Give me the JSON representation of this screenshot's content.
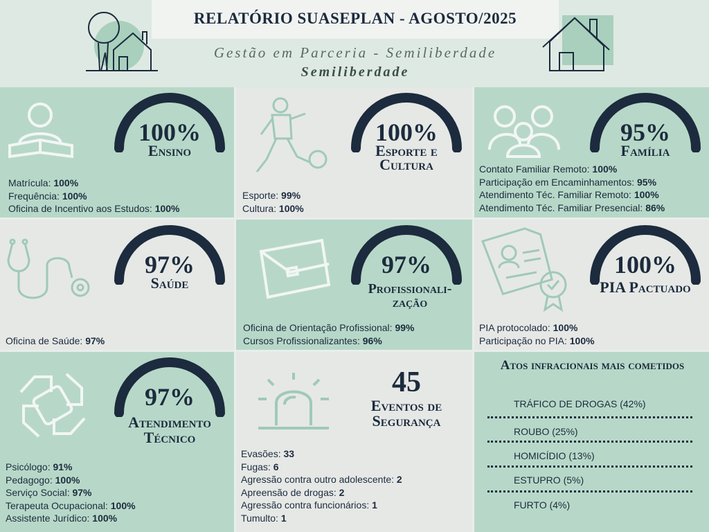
{
  "header": {
    "title": "RELATÓRIO SUASEPLAN - AGOSTO/2025",
    "subtitle": "Gestão em Parceria - Semiliberdade",
    "subtitle2": "Semiliberdade"
  },
  "colors": {
    "green": "#b7d8c8",
    "gray": "#e6e8e6",
    "navy": "#1c2b3d",
    "icon": "#7fb9a2"
  },
  "cards": [
    {
      "percent": "100%",
      "label": "Ensino",
      "icon": "reading-person-icon",
      "items": [
        {
          "label": "Matrícula: ",
          "value": "100%"
        },
        {
          "label": "Frequência: ",
          "value": "100%"
        },
        {
          "label": "Oficina de Incentivo aos Estudos: ",
          "value": "100%"
        }
      ]
    },
    {
      "percent": "100%",
      "label": "Esporte e Cultura",
      "icon": "soccer-player-icon",
      "items": [
        {
          "label": "Esporte: ",
          "value": "99%"
        },
        {
          "label": "Cultura: ",
          "value": "100%"
        }
      ]
    },
    {
      "percent": "95%",
      "label": "Família",
      "icon": "family-icon",
      "items": [
        {
          "label": "Contato Familiar Remoto: ",
          "value": "100%"
        },
        {
          "label": "Participação em Encaminhamentos: ",
          "value": "95%"
        },
        {
          "label": "Atendimento Téc. Familiar Remoto: ",
          "value": "100%"
        },
        {
          "label": "Atendimento Téc. Familiar Presencial: ",
          "value": "86%"
        }
      ]
    },
    {
      "percent": "97%",
      "label": "Saúde",
      "icon": "stethoscope-icon",
      "items": [
        {
          "label": "Oficina de Saúde: ",
          "value": "97%"
        }
      ]
    },
    {
      "percent": "97%",
      "label": "Profissionali-",
      "label2": "zação",
      "icon": "briefcase-icon",
      "items": [
        {
          "label": "Oficina de Orientação Profissional: ",
          "value": "99%"
        },
        {
          "label": "Cursos Profissionalizantes: ",
          "value": "96%"
        }
      ]
    },
    {
      "percent": "100%",
      "label": "PIA Pactuado",
      "icon": "document-icon",
      "items": [
        {
          "label": "PIA protocolado: ",
          "value": "100%"
        },
        {
          "label": "Participação no PIA: ",
          "value": "100%"
        }
      ]
    },
    {
      "percent": "97%",
      "label": "Atendimento",
      "label2": "Técnico",
      "icon": "hands-icon",
      "items": [
        {
          "label": "Psicólogo: ",
          "value": "91%"
        },
        {
          "label": "Pedagogo: ",
          "value": "100%"
        },
        {
          "label": "Serviço Social: ",
          "value": "97%"
        },
        {
          "label": "Terapeuta Ocupacional: ",
          "value": "100%"
        },
        {
          "label": "Assistente Jurídico: ",
          "value": "100%"
        }
      ]
    },
    {
      "percent": "45",
      "label": "Eventos de",
      "label2": "Segurança",
      "icon": "siren-icon",
      "items": [
        {
          "label": "Evasões: ",
          "value": "33"
        },
        {
          "label": "Fugas: ",
          "value": "6"
        },
        {
          "label": "Agressão contra outro adolescente: ",
          "value": "2"
        },
        {
          "label": "Apreensão de drogas: ",
          "value": "2"
        },
        {
          "label": "Agressão contra funcionários: ",
          "value": "1"
        },
        {
          "label": "Tumulto: ",
          "value": "1"
        }
      ]
    }
  ],
  "atos": {
    "title": "Atos infracionais mais cometidos",
    "items": [
      "TRÁFICO DE DROGAS (42%)",
      "ROUBO (25%)",
      "HOMICÍDIO (13%)",
      "ESTUPRO (5%)",
      "FURTO (4%)"
    ]
  }
}
